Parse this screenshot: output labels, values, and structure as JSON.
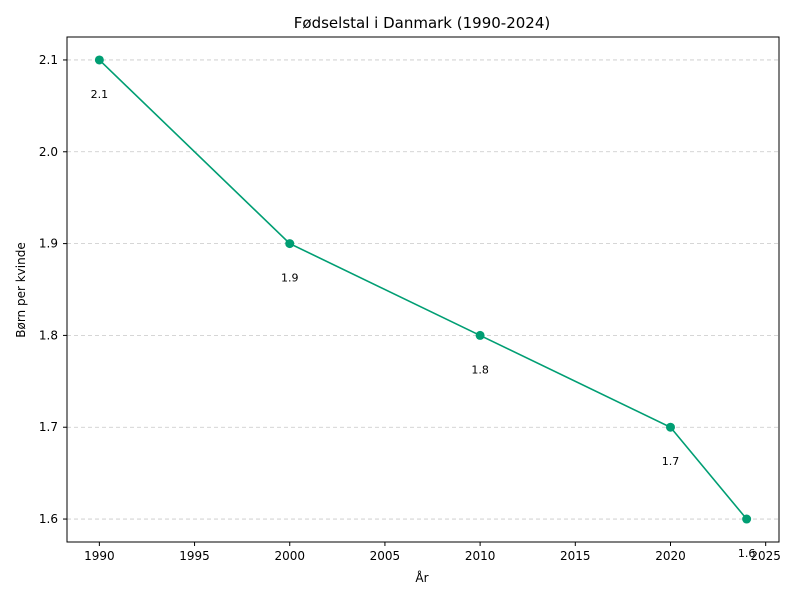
{
  "chart_data": {
    "type": "line",
    "title": "Fødselstal i Danmark (1990-2024)",
    "xlabel": "År",
    "ylabel": "Børn per kvinde",
    "x": [
      1990,
      2000,
      2010,
      2020,
      2024
    ],
    "series": [
      {
        "values": [
          2.1,
          1.9,
          1.8,
          1.7,
          1.6
        ],
        "data_labels": [
          "2.1",
          "1.9",
          "1.8",
          "1.7",
          "1.6"
        ],
        "color": "#009e73",
        "marker": "circle"
      }
    ],
    "xlim": [
      1988.3,
      2025.7
    ],
    "ylim": [
      1.575,
      2.125
    ],
    "xticks": [
      1990,
      1995,
      2000,
      2005,
      2010,
      2015,
      2020,
      2025
    ],
    "xtick_labels": [
      "1990",
      "1995",
      "2000",
      "2005",
      "2010",
      "2015",
      "2020",
      "2025"
    ],
    "yticks": [
      1.6,
      1.7,
      1.8,
      1.9,
      2.0,
      2.1
    ],
    "ytick_labels": [
      "1.6",
      "1.7",
      "1.8",
      "1.9",
      "2.0",
      "2.1"
    ],
    "grid": "horizontal-dashed",
    "legend": "none"
  }
}
